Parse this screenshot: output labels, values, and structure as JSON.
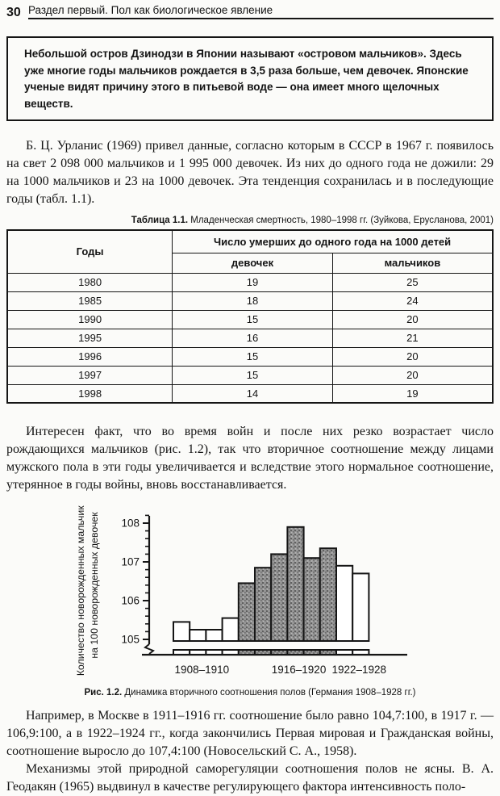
{
  "page": {
    "number": "30",
    "running_head": "Раздел первый. Пол как биологическое явление"
  },
  "info_box": {
    "text": "Небольшой остров Дзинодзи в Японии называют «островом мальчиков». Здесь уже многие годы мальчиков рождается в 3,5 раза больше, чем девочек. Японские ученые видят причину этого в питьевой воде — она имеет много щелочных веществ."
  },
  "paragraphs": {
    "p1": "Б. Ц. Урланис (1969) привел данные, согласно которым в СССР в 1967 г. появилось на свет 2 098 000 мальчиков и 1 995 000 девочек. Из них до одного года не дожили: 29 на 1000 мальчиков и 23 на 1000 девочек. Эта тенденция сохранилась и в последующие годы (табл. 1.1).",
    "p2": "Интересен факт, что во время войн и после них резко возрастает число рождающихся мальчиков (рис. 1.2), так что вторичное соотношение между лицами мужского пола в эти годы увеличивается и вследствие этого нормальное соотношение, утерянное в годы войны, вновь восстанавливается.",
    "p3": "Например, в Москве в 1911–1916 гг. соотношение было равно 104,7:100, в 1917 г. — 106,9:100, а в 1922–1924 гг., когда закончились Первая мировая и Гражданская войны, соотношение выросло до 107,4:100 (Новосельский С. А., 1958).",
    "p4": "Механизмы этой природной саморегуляции соотношения полов не ясны. В. А. Геодакян (1965) выдвинул в качестве регулирующего фактора интенсивность поло-"
  },
  "table": {
    "caption_label": "Таблица 1.1.",
    "caption_text": " Младенческая смертность, 1980–1998 гг. (Зуйкова, Ерусланова, 2001)",
    "col_year": "Годы",
    "col_group": "Число умерших до одного года на 1000 детей",
    "col_girls": "девочек",
    "col_boys": "мальчиков",
    "rows": [
      {
        "year": "1980",
        "girls": "19",
        "boys": "25"
      },
      {
        "year": "1985",
        "girls": "18",
        "boys": "24"
      },
      {
        "year": "1990",
        "girls": "15",
        "boys": "20"
      },
      {
        "year": "1995",
        "girls": "16",
        "boys": "21"
      },
      {
        "year": "1996",
        "girls": "15",
        "boys": "20"
      },
      {
        "year": "1997",
        "girls": "15",
        "boys": "20"
      },
      {
        "year": "1998",
        "girls": "14",
        "boys": "19"
      }
    ]
  },
  "figure": {
    "caption_label": "Рис. 1.2.",
    "caption_text": " Динамика вторичного соотношения полов (Германия 1908–1928 гг.)"
  },
  "colors": {
    "ink": "#151515",
    "shaded_bar_base": "#949494",
    "shaded_bar_dark": "#5f5f5f",
    "shaded_bar_mid": "#6e6e6e",
    "shaded_bar_light": "#bdbdbd",
    "paper": "#fbfbf9"
  },
  "chart_data": {
    "type": "bar",
    "title": "Динамика вторичного соотношения полов (Германия 1908–1928 гг.)",
    "ylabel_lines": [
      "Количество новорожденных мальчиков",
      "на 100 новорожденных девочек"
    ],
    "xlabel": "",
    "y_ticks": [
      105,
      106,
      107,
      108
    ],
    "y_minor_step": 0.2,
    "ylim": [
      105,
      108.2
    ],
    "axis_break": true,
    "grid": false,
    "legend": "none",
    "bars": [
      {
        "value": 105.45,
        "shaded": false
      },
      {
        "value": 105.25,
        "shaded": false
      },
      {
        "value": 105.25,
        "shaded": false
      },
      {
        "value": 105.55,
        "shaded": false
      },
      {
        "value": 106.45,
        "shaded": true
      },
      {
        "value": 106.85,
        "shaded": true
      },
      {
        "value": 107.2,
        "shaded": true
      },
      {
        "value": 107.9,
        "shaded": true
      },
      {
        "value": 107.1,
        "shaded": true
      },
      {
        "value": 107.35,
        "shaded": true
      },
      {
        "value": 106.9,
        "shaded": false
      },
      {
        "value": 106.7,
        "shaded": false
      }
    ],
    "x_labels": [
      {
        "text": "1908–1910",
        "at_bar": 1.75
      },
      {
        "text": "1916–1920",
        "at_bar": 7.7
      },
      {
        "text": "1922–1928",
        "at_bar": 11.4
      }
    ]
  }
}
